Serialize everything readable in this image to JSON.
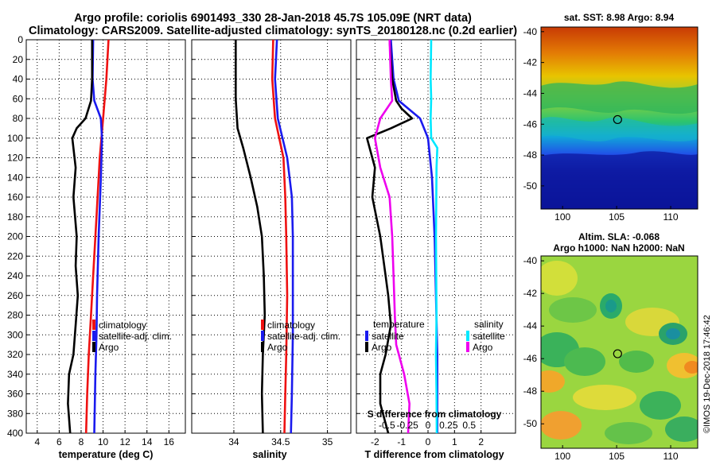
{
  "title": {
    "line1": "Argo profile: coriolis 6901493_330 28-Jan-2018 45.7S 105.09E (NRT data)",
    "line2": "Climatology: CARS2009. Satellite-adjusted climatology: synTS_20180128.nc (0.2d earlier)"
  },
  "watermark": "©IMOS 19-Dec-2018 17:46:42",
  "colors": {
    "climatology": "#ee1111",
    "satellite_adj": "#1a1aee",
    "argo": "#000000",
    "salinity_sat": "#00e8ff",
    "salinity_argo": "#ee00ee"
  },
  "chart_data": [
    {
      "type": "line",
      "panel": "temperature",
      "xlabel": "temperature (deg C)",
      "ylabel": "depth",
      "xlim": [
        3,
        17.5
      ],
      "ylim": [
        0,
        400
      ],
      "xticks": [
        "4",
        "6",
        "8",
        "10",
        "12",
        "14",
        "16"
      ],
      "xtick_values": [
        4,
        6,
        8,
        10,
        12,
        14,
        16
      ],
      "yticks": [
        "0",
        "20",
        "40",
        "60",
        "80",
        "100",
        "120",
        "140",
        "160",
        "180",
        "200",
        "220",
        "240",
        "260",
        "280",
        "300",
        "320",
        "340",
        "360",
        "380",
        "400"
      ],
      "legend": [
        "climatology",
        "satellite-adj. clim.",
        "Argo"
      ],
      "series": [
        {
          "name": "climatology",
          "color": "#ee1111",
          "points": [
            [
              10.5,
              0
            ],
            [
              10.3,
              40
            ],
            [
              10.0,
              80
            ],
            [
              9.7,
              120
            ],
            [
              9.4,
              180
            ],
            [
              9.1,
              240
            ],
            [
              8.9,
              280
            ],
            [
              8.7,
              320
            ],
            [
              8.55,
              360
            ],
            [
              8.45,
              400
            ]
          ]
        },
        {
          "name": "satellite-adj. clim.",
          "color": "#1a1aee",
          "points": [
            [
              9.1,
              0
            ],
            [
              9.05,
              40
            ],
            [
              9.2,
              62
            ],
            [
              9.8,
              80
            ],
            [
              9.9,
              100
            ],
            [
              9.8,
              140
            ],
            [
              9.6,
              200
            ],
            [
              9.45,
              260
            ],
            [
              9.4,
              300
            ],
            [
              9.3,
              340
            ],
            [
              9.2,
              400
            ]
          ]
        },
        {
          "name": "Argo",
          "color": "#000000",
          "points": [
            [
              9.0,
              0
            ],
            [
              9.0,
              40
            ],
            [
              8.9,
              62
            ],
            [
              8.4,
              80
            ],
            [
              7.6,
              90
            ],
            [
              7.2,
              100
            ],
            [
              7.5,
              130
            ],
            [
              7.3,
              160
            ],
            [
              7.6,
              200
            ],
            [
              7.5,
              230
            ],
            [
              7.7,
              260
            ],
            [
              7.5,
              290
            ],
            [
              7.3,
              320
            ],
            [
              6.9,
              340
            ],
            [
              6.8,
              370
            ],
            [
              7.0,
              400
            ]
          ]
        }
      ]
    },
    {
      "type": "line",
      "panel": "salinity",
      "xlabel": "salinity",
      "xlim": [
        33.55,
        35.25
      ],
      "ylim": [
        0,
        400
      ],
      "xticks": [
        "34",
        "34.5",
        "35"
      ],
      "xtick_values": [
        34,
        34.5,
        35
      ],
      "legend": [
        "climatology",
        "satellite-adj. clim.",
        "Argo"
      ],
      "series": [
        {
          "name": "climatology",
          "color": "#ee1111",
          "points": [
            [
              34.42,
              0
            ],
            [
              34.41,
              40
            ],
            [
              34.44,
              80
            ],
            [
              34.53,
              120
            ],
            [
              34.55,
              160
            ],
            [
              34.56,
              200
            ],
            [
              34.57,
              260
            ],
            [
              34.56,
              320
            ],
            [
              34.55,
              360
            ],
            [
              34.54,
              400
            ]
          ]
        },
        {
          "name": "satellite-adj. clim.",
          "color": "#1a1aee",
          "points": [
            [
              34.46,
              0
            ],
            [
              34.44,
              40
            ],
            [
              34.47,
              80
            ],
            [
              34.57,
              120
            ],
            [
              34.62,
              160
            ],
            [
              34.63,
              200
            ],
            [
              34.63,
              300
            ],
            [
              34.62,
              360
            ],
            [
              34.61,
              400
            ]
          ]
        },
        {
          "name": "Argo",
          "color": "#000000",
          "points": [
            [
              34.02,
              0
            ],
            [
              34.02,
              60
            ],
            [
              34.04,
              90
            ],
            [
              34.1,
              110
            ],
            [
              34.18,
              140
            ],
            [
              34.25,
              170
            ],
            [
              34.3,
              200
            ],
            [
              34.32,
              240
            ],
            [
              34.33,
              280
            ],
            [
              34.31,
              320
            ],
            [
              34.3,
              360
            ],
            [
              34.31,
              400
            ]
          ]
        }
      ]
    },
    {
      "type": "line",
      "panel": "difference",
      "xlabel": "T difference from climatology",
      "xlim": [
        -2.7,
        3.3
      ],
      "ylim": [
        0,
        400
      ],
      "xticks": [
        "-2",
        "-1",
        "0",
        "1",
        "2"
      ],
      "xtick_values": [
        -2,
        -1,
        0,
        1,
        2
      ],
      "secondary_xlabel": "S difference from climatology",
      "secondary_xticks": [
        "-0.5",
        "-0.25",
        "0",
        "0.25",
        "0.5"
      ],
      "secondary_xtick_values": [
        -0.5,
        -0.25,
        0,
        0.25,
        0.5
      ],
      "legend_temperature_title": "temperature",
      "legend_salinity_title": "salinity",
      "legend": [
        "satellite",
        "Argo",
        "satellite",
        "Argo"
      ],
      "series": [
        {
          "name": "temperature satellite",
          "color": "#1a1aee",
          "points": [
            [
              -1.4,
              0
            ],
            [
              -1.3,
              40
            ],
            [
              -1.1,
              62
            ],
            [
              -0.3,
              80
            ],
            [
              0.0,
              100
            ],
            [
              0.15,
              140
            ],
            [
              0.25,
              200
            ],
            [
              0.3,
              260
            ],
            [
              0.35,
              320
            ],
            [
              0.35,
              400
            ]
          ]
        },
        {
          "name": "temperature Argo",
          "color": "#000000",
          "points": [
            [
              -1.45,
              0
            ],
            [
              -1.35,
              40
            ],
            [
              -1.2,
              62
            ],
            [
              -1.0,
              70
            ],
            [
              -0.6,
              80
            ],
            [
              -1.4,
              90
            ],
            [
              -2.3,
              100
            ],
            [
              -2.0,
              130
            ],
            [
              -2.1,
              160
            ],
            [
              -1.8,
              200
            ],
            [
              -1.6,
              240
            ],
            [
              -1.5,
              260
            ],
            [
              -1.4,
              290
            ],
            [
              -1.6,
              320
            ],
            [
              -1.8,
              340
            ],
            [
              -1.8,
              370
            ],
            [
              -1.5,
              400
            ]
          ]
        },
        {
          "name": "salinity satellite",
          "color": "#00e8ff",
          "points": [
            [
              0.12,
              0
            ],
            [
              0.1,
              40
            ],
            [
              0.12,
              60
            ],
            [
              0.1,
              80
            ],
            [
              0.12,
              100
            ],
            [
              0.35,
              110
            ],
            [
              0.32,
              130
            ],
            [
              0.3,
              200
            ],
            [
              0.32,
              280
            ],
            [
              0.3,
              320
            ],
            [
              0.32,
              360
            ],
            [
              0.33,
              400
            ]
          ]
        },
        {
          "name": "salinity Argo",
          "color": "#ee00ee",
          "points": [
            [
              -1.45,
              0
            ],
            [
              -1.4,
              40
            ],
            [
              -1.35,
              62
            ],
            [
              -1.8,
              80
            ],
            [
              -2.0,
              100
            ],
            [
              -1.8,
              130
            ],
            [
              -1.45,
              160
            ],
            [
              -1.35,
              200
            ],
            [
              -1.3,
              240
            ],
            [
              -1.25,
              280
            ],
            [
              -1.2,
              310
            ],
            [
              -0.9,
              340
            ],
            [
              -0.7,
              370
            ],
            [
              -0.75,
              400
            ]
          ]
        }
      ]
    },
    {
      "type": "heatmap",
      "panel": "sst-map",
      "title": "sat. SST: 8.98 Argo: 8.94",
      "xlim": [
        98,
        112.5
      ],
      "ylim": [
        -51.5,
        -39.7
      ],
      "xticks": [
        "100",
        "105",
        "110"
      ],
      "xtick_values": [
        100,
        105,
        110
      ],
      "yticks": [
        "-40",
        "-42",
        "-44",
        "-46",
        "-48",
        "-50"
      ],
      "ytick_values": [
        -40,
        -42,
        -44,
        -46,
        -48,
        -50
      ],
      "argo_position": {
        "lon": 105.09,
        "lat": -45.7
      }
    },
    {
      "type": "heatmap",
      "panel": "sla-map",
      "title_line1": "Altim. SLA: -0.068",
      "title_line2": "Argo h1000: NaN h2000: NaN",
      "xlim": [
        98,
        112.5
      ],
      "ylim": [
        -51.5,
        -39.7
      ],
      "xticks": [
        "100",
        "105",
        "110"
      ],
      "xtick_values": [
        100,
        105,
        110
      ],
      "yticks": [
        "-40",
        "-42",
        "-44",
        "-46",
        "-48",
        "-50"
      ],
      "ytick_values": [
        -40,
        -42,
        -44,
        -46,
        -48,
        -50
      ],
      "argo_position": {
        "lon": 105.09,
        "lat": -45.7
      }
    }
  ]
}
